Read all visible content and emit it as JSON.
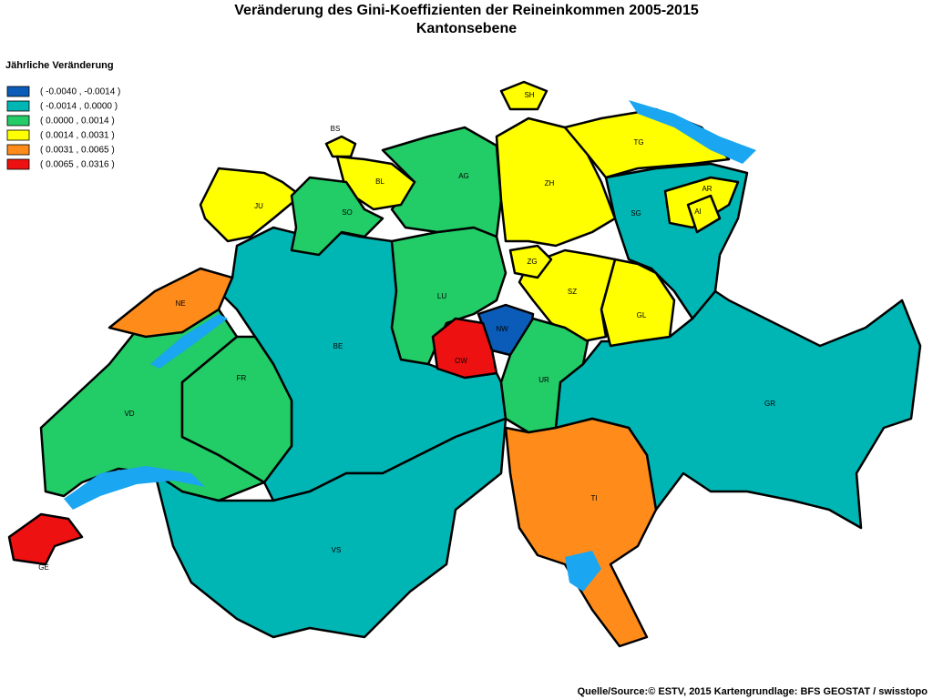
{
  "title": "Veränderung des Gini-Koeffizienten der Reineinkommen 2005-2015",
  "subtitle": "Kantonsebene",
  "legend": {
    "title": "Jährliche Veränderung",
    "items": [
      {
        "label": "( -0.0040 , -0.0014 )",
        "color": "#0a5cb8"
      },
      {
        "label": "( -0.0014 , 0.0000 )",
        "color": "#00b6b4"
      },
      {
        "label": "( 0.0000 , 0.0014 )",
        "color": "#22cc66"
      },
      {
        "label": "( 0.0014 , 0.0031 )",
        "color": "#ffff00"
      },
      {
        "label": "( 0.0031 , 0.0065 )",
        "color": "#ff8c1a"
      },
      {
        "label": "( 0.0065 , 0.0316 )",
        "color": "#ee1111"
      }
    ]
  },
  "cantons": [
    {
      "label": "GE",
      "color": "#ee1111"
    },
    {
      "label": "VD",
      "color": "#22cc66"
    },
    {
      "label": "NE",
      "color": "#ff8c1a"
    },
    {
      "label": "JU",
      "color": "#ffff00"
    },
    {
      "label": "BS",
      "color": "#ffff00"
    },
    {
      "label": "BL",
      "color": "#ffff00"
    },
    {
      "label": "SO",
      "color": "#22cc66"
    },
    {
      "label": "AG",
      "color": "#22cc66"
    },
    {
      "label": "ZH",
      "color": "#ffff00"
    },
    {
      "label": "SH",
      "color": "#ffff00"
    },
    {
      "label": "TG",
      "color": "#ffff00"
    },
    {
      "label": "SG",
      "color": "#00b6b4"
    },
    {
      "label": "AR",
      "color": "#ffff00"
    },
    {
      "label": "AI",
      "color": "#ffff00"
    },
    {
      "label": "GL",
      "color": "#ffff00"
    },
    {
      "label": "SZ",
      "color": "#ffff00"
    },
    {
      "label": "ZG",
      "color": "#ffff00"
    },
    {
      "label": "LU",
      "color": "#22cc66"
    },
    {
      "label": "NW",
      "color": "#0a5cb8"
    },
    {
      "label": "OW",
      "color": "#ee1111"
    },
    {
      "label": "UR",
      "color": "#22cc66"
    },
    {
      "label": "BE",
      "color": "#00b6b4"
    },
    {
      "label": "FR",
      "color": "#22cc66"
    },
    {
      "label": "VS",
      "color": "#00b6b4"
    },
    {
      "label": "TI",
      "color": "#ff8c1a"
    },
    {
      "label": "GR",
      "color": "#00b6b4"
    }
  ],
  "source": "Quelle/Source:© ESTV, 2015 Kartengrundlage: BFS GEOSTAT / swisstopo"
}
